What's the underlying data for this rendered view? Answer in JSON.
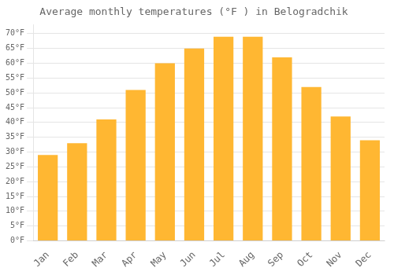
{
  "chart_data": {
    "type": "bar",
    "title": "Average monthly temperatures (°F ) in Belogradchik",
    "categories": [
      "Jan",
      "Feb",
      "Mar",
      "Apr",
      "May",
      "Jun",
      "Jul",
      "Aug",
      "Sep",
      "Oct",
      "Nov",
      "Dec"
    ],
    "values": [
      29,
      33,
      41,
      51,
      60,
      65,
      69,
      69,
      62,
      52,
      42,
      34
    ],
    "color": "#FFB732",
    "ylim": [
      0,
      73
    ],
    "yticks": [
      {
        "value": 0,
        "label": "0°F"
      },
      {
        "value": 5,
        "label": "5°F"
      },
      {
        "value": 10,
        "label": "10°F"
      },
      {
        "value": 15,
        "label": "15°F"
      },
      {
        "value": 20,
        "label": "20°F"
      },
      {
        "value": 25,
        "label": "25°F"
      },
      {
        "value": 30,
        "label": "30°F"
      },
      {
        "value": 35,
        "label": "35°F"
      },
      {
        "value": 40,
        "label": "40°F"
      },
      {
        "value": 45,
        "label": "45°F"
      },
      {
        "value": 50,
        "label": "50°F"
      },
      {
        "value": 55,
        "label": "55°F"
      },
      {
        "value": 60,
        "label": "60°F"
      },
      {
        "value": 65,
        "label": "65°F"
      },
      {
        "value": 70,
        "label": "70°F"
      }
    ],
    "grid": true
  }
}
